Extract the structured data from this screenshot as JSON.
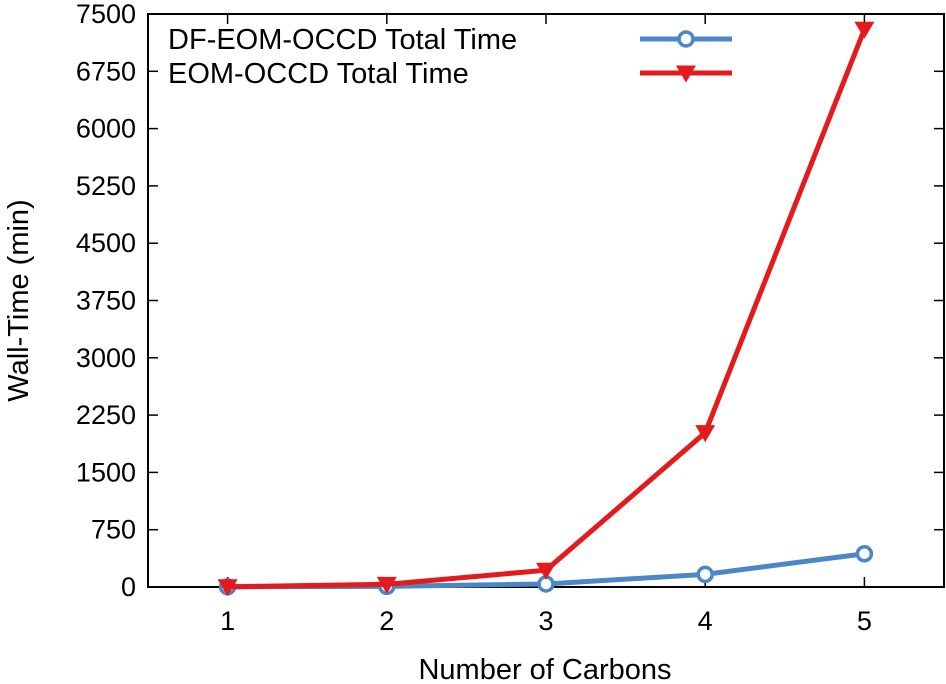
{
  "chart_data": {
    "type": "line",
    "title": "",
    "xlabel": "Number of Carbons",
    "ylabel": "Wall-Time (min)",
    "x": [
      1,
      2,
      3,
      4,
      5
    ],
    "xlim": [
      0.5,
      5.5
    ],
    "ylim": [
      0,
      7500
    ],
    "xticks": [
      "1",
      "2",
      "3",
      "4",
      "5"
    ],
    "yticks": [
      "0",
      "750",
      "1500",
      "2250",
      "3000",
      "3750",
      "4500",
      "5250",
      "6000",
      "6750",
      "7500"
    ],
    "grid": false,
    "legend_position": "top-left",
    "series": [
      {
        "name": "DF-EOM-OCCD Total Time",
        "color": "#4a86c8",
        "marker": "open-circle",
        "values": [
          2,
          8,
          40,
          165,
          435
        ]
      },
      {
        "name": "EOM-OCCD Total Time",
        "color": "#e41a1c",
        "marker": "filled-triangle-down",
        "values": [
          3,
          35,
          220,
          2020,
          7300
        ]
      }
    ]
  }
}
